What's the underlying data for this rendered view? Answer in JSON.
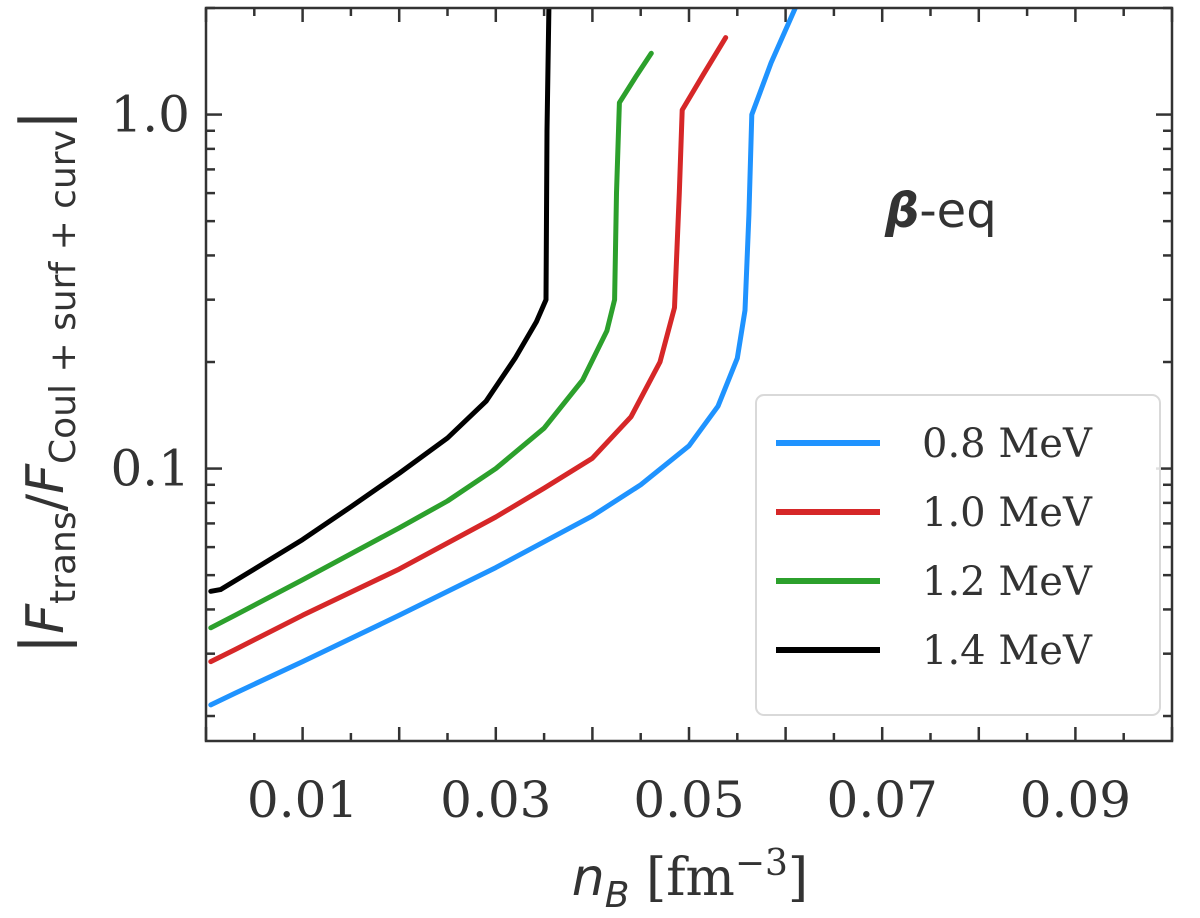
{
  "chart_data": {
    "type": "line",
    "title": "",
    "xlabel": "n_B [fm^-3]",
    "xlabel_main": "n",
    "xlabel_sub": "B",
    "xlabel_unit": " [fm",
    "xlabel_exp": "−3",
    "xlabel_close": "]",
    "ylabel": "|F_trans/F_Coul + surf + curv|",
    "ylabel_bar": "|",
    "ylabel_F1": "F",
    "ylabel_sub1": "trans",
    "ylabel_slash": "/",
    "ylabel_F2": "F",
    "ylabel_sub2": "Coul + surf + curv",
    "xscale": "linear",
    "yscale": "log",
    "xlim": [
      0.0,
      0.1
    ],
    "ylim": [
      0.017,
      2.0
    ],
    "xticks": [
      0.01,
      0.03,
      0.05,
      0.07,
      0.09
    ],
    "xtick_labels": [
      "0.01",
      "0.03",
      "0.05",
      "0.07",
      "0.09"
    ],
    "yticks": [
      0.1,
      1.0
    ],
    "ytick_labels": [
      "0.1",
      "1.0"
    ],
    "annotation": {
      "greek": "β",
      "text": "-eq",
      "position": "upper-right"
    },
    "legend_position": "lower-right",
    "series": [
      {
        "name": "0.8 MeV",
        "color": "#1f93ff",
        "points": [
          [
            0.0005,
            0.0215
          ],
          [
            0.003,
            0.0232
          ],
          [
            0.01,
            0.0285
          ],
          [
            0.02,
            0.0385
          ],
          [
            0.03,
            0.0525
          ],
          [
            0.04,
            0.0735
          ],
          [
            0.045,
            0.09
          ],
          [
            0.05,
            0.116
          ],
          [
            0.053,
            0.15
          ],
          [
            0.055,
            0.205
          ],
          [
            0.0558,
            0.28
          ],
          [
            0.0562,
            0.52
          ],
          [
            0.0565,
            1.0
          ],
          [
            0.0585,
            1.4
          ],
          [
            0.061,
            2.0
          ]
        ]
      },
      {
        "name": "1.0 MeV",
        "color": "#d62728",
        "points": [
          [
            0.0005,
            0.0285
          ],
          [
            0.003,
            0.0308
          ],
          [
            0.01,
            0.0385
          ],
          [
            0.02,
            0.052
          ],
          [
            0.03,
            0.073
          ],
          [
            0.035,
            0.088
          ],
          [
            0.04,
            0.107
          ],
          [
            0.044,
            0.14
          ],
          [
            0.047,
            0.2
          ],
          [
            0.0485,
            0.285
          ],
          [
            0.049,
            0.6
          ],
          [
            0.0493,
            1.03
          ],
          [
            0.0515,
            1.3
          ],
          [
            0.0538,
            1.65
          ]
        ]
      },
      {
        "name": "1.2 MeV",
        "color": "#2ca02c",
        "points": [
          [
            0.0005,
            0.0355
          ],
          [
            0.003,
            0.0385
          ],
          [
            0.01,
            0.0485
          ],
          [
            0.02,
            0.068
          ],
          [
            0.025,
            0.081
          ],
          [
            0.03,
            0.1
          ],
          [
            0.035,
            0.13
          ],
          [
            0.039,
            0.178
          ],
          [
            0.0415,
            0.245
          ],
          [
            0.0423,
            0.3
          ],
          [
            0.0425,
            0.6
          ],
          [
            0.0428,
            1.08
          ],
          [
            0.0445,
            1.28
          ],
          [
            0.0461,
            1.49
          ]
        ]
      },
      {
        "name": "1.4 MeV",
        "color": "#000000",
        "points": [
          [
            0.0005,
            0.045
          ],
          [
            0.0015,
            0.0455
          ],
          [
            0.005,
            0.052
          ],
          [
            0.01,
            0.063
          ],
          [
            0.015,
            0.078
          ],
          [
            0.02,
            0.097
          ],
          [
            0.025,
            0.122
          ],
          [
            0.029,
            0.155
          ],
          [
            0.032,
            0.205
          ],
          [
            0.0342,
            0.26
          ],
          [
            0.0352,
            0.3
          ],
          [
            0.0353,
            0.9
          ],
          [
            0.0355,
            2.0
          ]
        ]
      }
    ]
  }
}
